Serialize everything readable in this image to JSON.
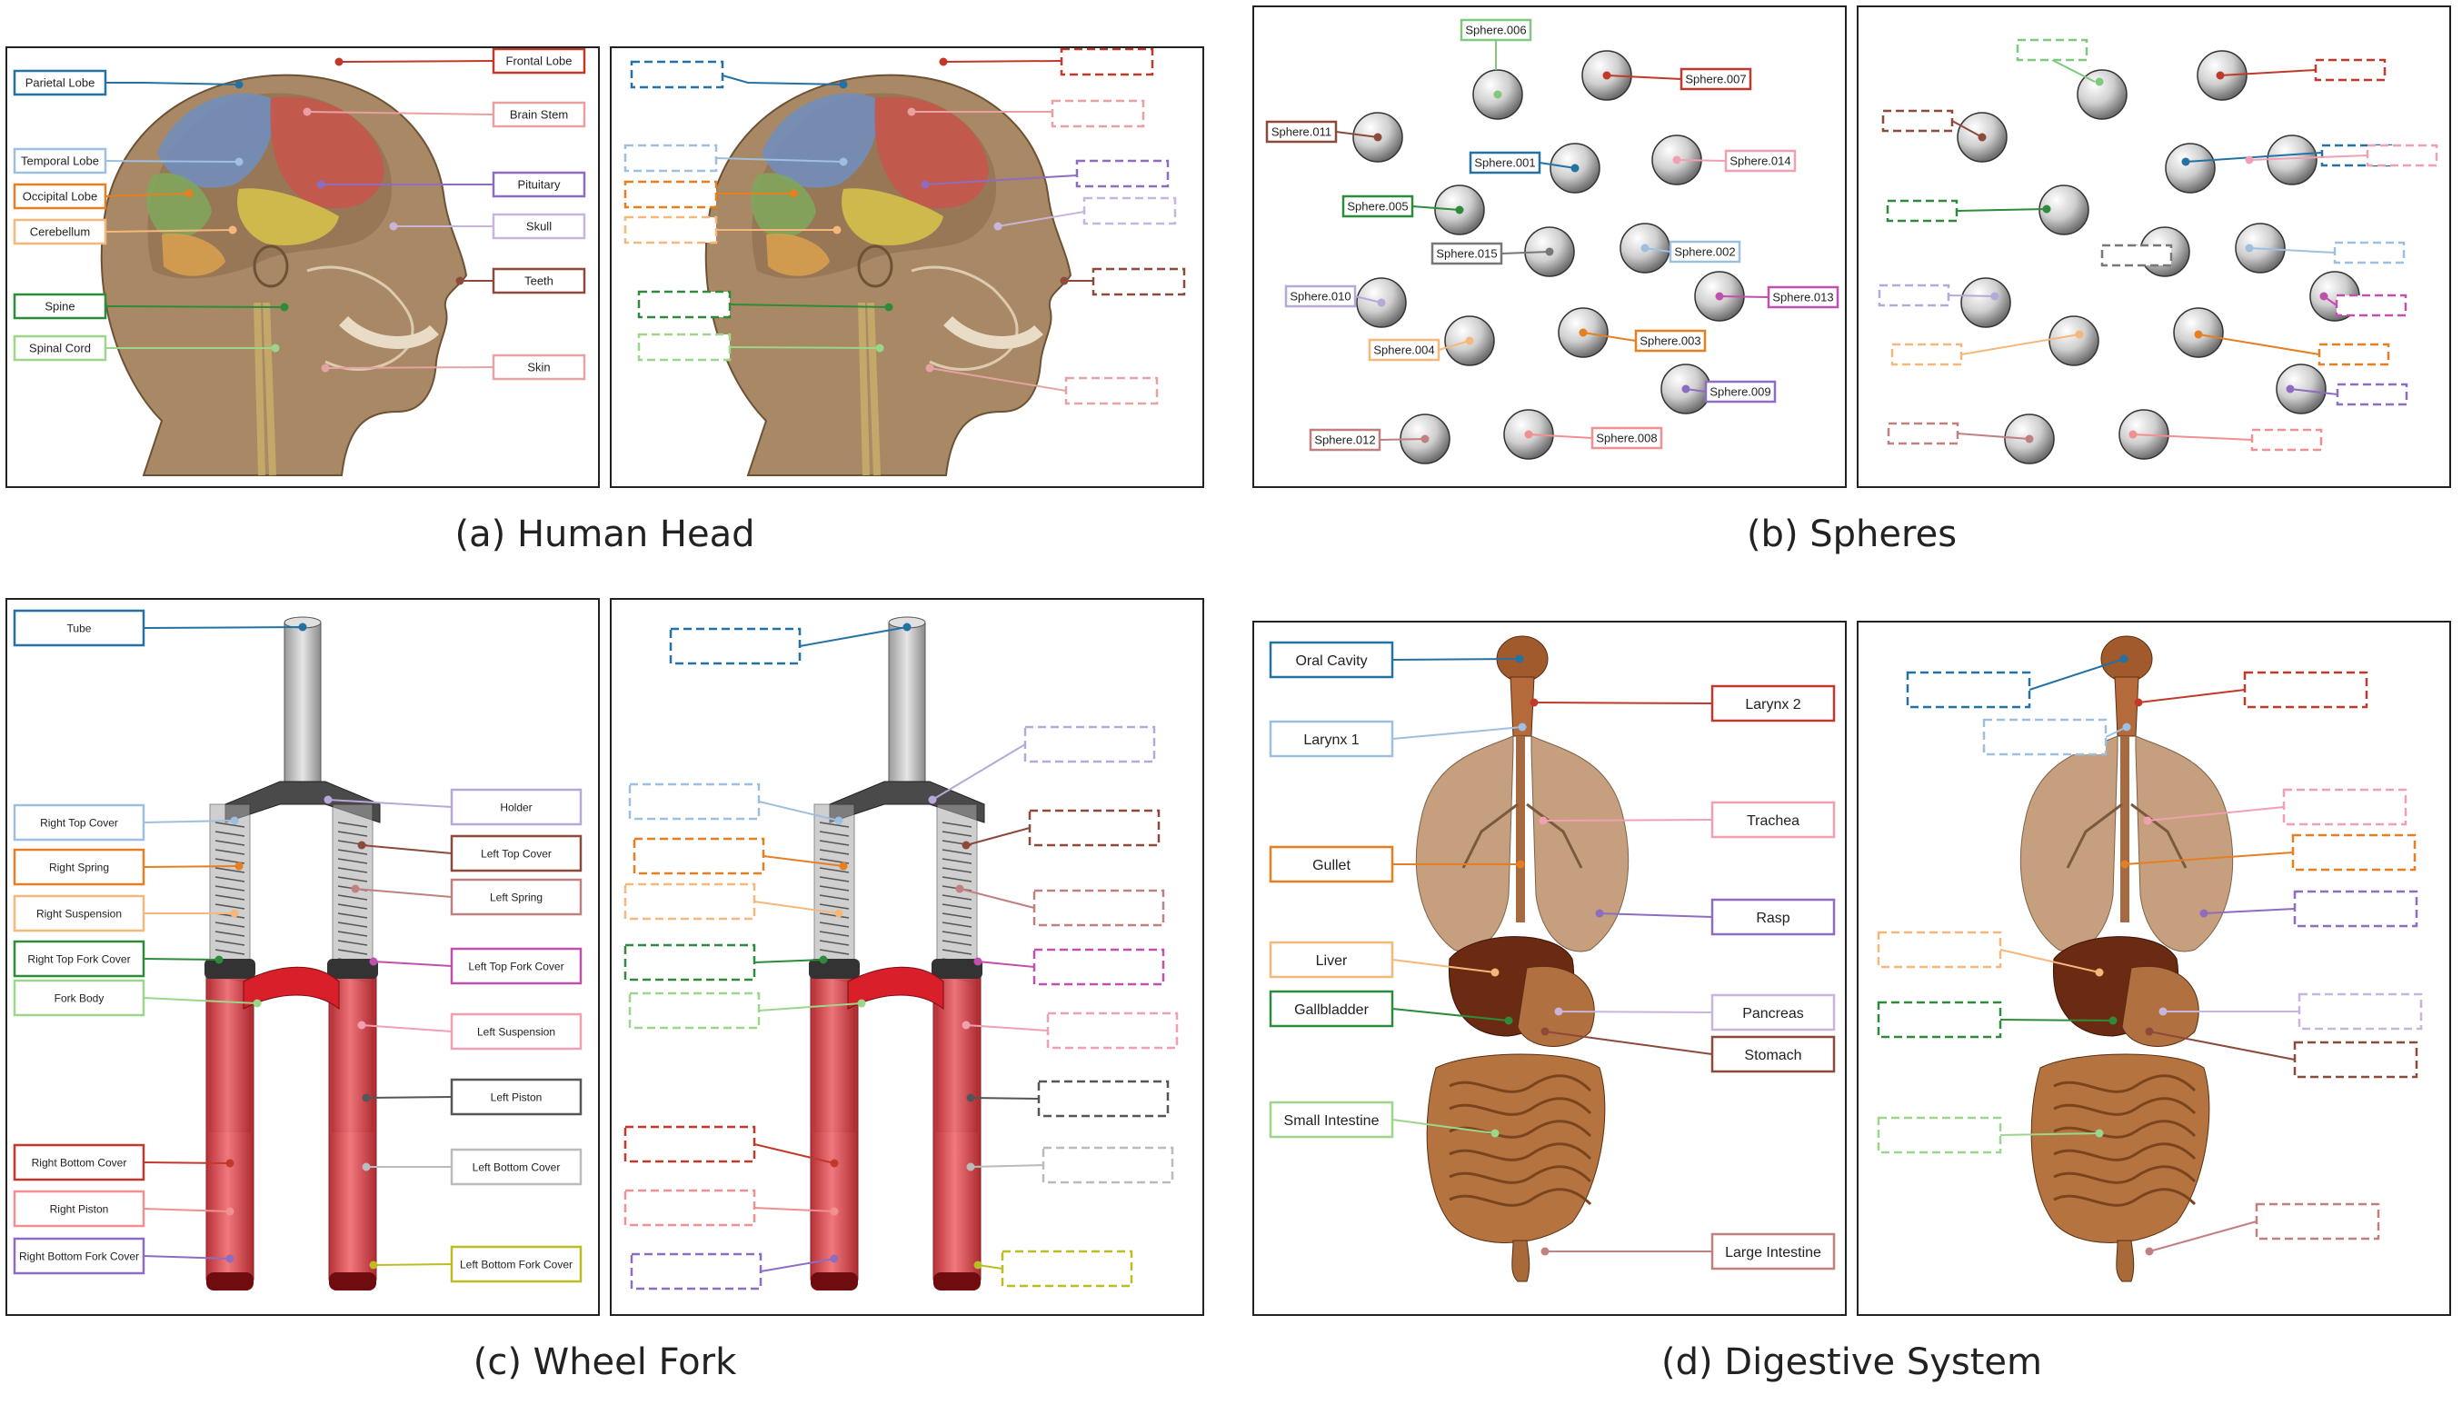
{
  "figure": {
    "panels": [
      {
        "id": "a",
        "caption": "(a) Human Head",
        "subject": "human-head",
        "labels": [
          {
            "text": "Parietal Lobe",
            "color": "#2471a3"
          },
          {
            "text": "Frontal Lobe",
            "color": "#c0392b"
          },
          {
            "text": "Brain Stem",
            "color": "#e8a0a0"
          },
          {
            "text": "Temporal Lobe",
            "color": "#9fbfe0"
          },
          {
            "text": "Occipital Lobe",
            "color": "#e67e22"
          },
          {
            "text": "Pituitary",
            "color": "#8e6cc0"
          },
          {
            "text": "Cerebellum",
            "color": "#f5b77a"
          },
          {
            "text": "Skull",
            "color": "#c9b5dc"
          },
          {
            "text": "Teeth",
            "color": "#8d4a3a"
          },
          {
            "text": "Spine",
            "color": "#2e8b3a"
          },
          {
            "text": "Spinal Cord",
            "color": "#9bd68a"
          },
          {
            "text": "Skin",
            "color": "#e6a3a3"
          }
        ]
      },
      {
        "id": "b",
        "caption": "(b) Spheres",
        "subject": "spheres",
        "labels": [
          {
            "text": "Sphere.006",
            "color": "#7fc97f"
          },
          {
            "text": "Sphere.007",
            "color": "#c0392b"
          },
          {
            "text": "Sphere.011",
            "color": "#8d4a3a"
          },
          {
            "text": "Sphere.001",
            "color": "#2471a3"
          },
          {
            "text": "Sphere.014",
            "color": "#f0a0b0"
          },
          {
            "text": "Sphere.005",
            "color": "#2e8b3a"
          },
          {
            "text": "Sphere.015",
            "color": "#777777"
          },
          {
            "text": "Sphere.002",
            "color": "#9fbfe0"
          },
          {
            "text": "Sphere.010",
            "color": "#b8a8d8"
          },
          {
            "text": "Sphere.013",
            "color": "#c050b0"
          },
          {
            "text": "Sphere.004",
            "color": "#f5b77a"
          },
          {
            "text": "Sphere.003",
            "color": "#e67e22"
          },
          {
            "text": "Sphere.009",
            "color": "#8e6cc0"
          },
          {
            "text": "Sphere.012",
            "color": "#c08080"
          },
          {
            "text": "Sphere.008",
            "color": "#f09090"
          }
        ]
      },
      {
        "id": "c",
        "caption": "(c) Wheel Fork",
        "subject": "wheel-fork",
        "labels": [
          {
            "text": "Tube",
            "color": "#2471a3"
          },
          {
            "text": "Holder",
            "color": "#b8a8d8"
          },
          {
            "text": "Right Top Cover",
            "color": "#9fbfe0"
          },
          {
            "text": "Left Top Cover",
            "color": "#8d4a3a"
          },
          {
            "text": "Right Spring",
            "color": "#e67e22"
          },
          {
            "text": "Left Spring",
            "color": "#c08080"
          },
          {
            "text": "Right Suspension",
            "color": "#f5b77a"
          },
          {
            "text": "Right Top Fork Cover",
            "color": "#2e8b3a"
          },
          {
            "text": "Left Top Fork Cover",
            "color": "#c050b0"
          },
          {
            "text": "Fork Body",
            "color": "#9bd68a"
          },
          {
            "text": "Left Suspension",
            "color": "#f0a0b0"
          },
          {
            "text": "Left Piston",
            "color": "#555555"
          },
          {
            "text": "Right Bottom Cover",
            "color": "#c0392b"
          },
          {
            "text": "Left Bottom Cover",
            "color": "#bbbbbb"
          },
          {
            "text": "Right Piston",
            "color": "#f09090"
          },
          {
            "text": "Right Bottom Fork Cover",
            "color": "#8e6cc0"
          },
          {
            "text": "Left Bottom Fork Cover",
            "color": "#bcbd22"
          }
        ]
      },
      {
        "id": "d",
        "caption": "(d) Digestive System",
        "subject": "digestive-system",
        "labels": [
          {
            "text": "Oral Cavity",
            "color": "#2471a3"
          },
          {
            "text": "Larynx 2",
            "color": "#c0392b"
          },
          {
            "text": "Larynx 1",
            "color": "#9fbfe0"
          },
          {
            "text": "Trachea",
            "color": "#f0a0b0"
          },
          {
            "text": "Gullet",
            "color": "#e67e22"
          },
          {
            "text": "Rasp",
            "color": "#8e6cc0"
          },
          {
            "text": "Liver",
            "color": "#f5b77a"
          },
          {
            "text": "Pancreas",
            "color": "#c9b5dc"
          },
          {
            "text": "Gallbladder",
            "color": "#2e8b3a"
          },
          {
            "text": "Stomach",
            "color": "#8d4a3a"
          },
          {
            "text": "Small Intestine",
            "color": "#9bd68a"
          },
          {
            "text": "Large Intestine",
            "color": "#c08080"
          }
        ]
      }
    ]
  }
}
